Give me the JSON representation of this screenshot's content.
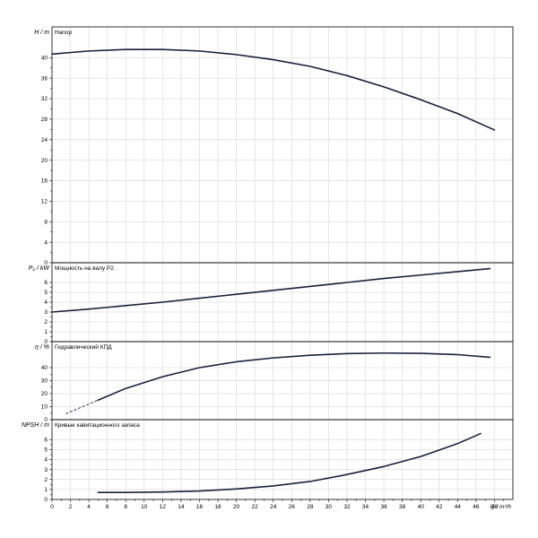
{
  "chart_data": {
    "type": "line",
    "x_axis": {
      "label": "Q / m³/h",
      "range": [
        0,
        50
      ],
      "ticks": [
        0,
        2,
        4,
        6,
        8,
        10,
        12,
        14,
        16,
        18,
        20,
        22,
        24,
        26,
        28,
        30,
        32,
        34,
        36,
        38,
        40,
        42,
        44,
        46,
        48
      ]
    },
    "panels": [
      {
        "id": "head",
        "title": "Напор",
        "ylabel": "H / m",
        "ylim": [
          0,
          46
        ],
        "yticks": [
          0,
          4,
          8,
          12,
          16,
          20,
          24,
          28,
          32,
          36,
          40
        ],
        "series": [
          {
            "x": [
              0,
              4,
              8,
              12,
              16,
              20,
              24,
              28,
              32,
              36,
              40,
              44,
              48
            ],
            "y": [
              40.7,
              41.3,
              41.6,
              41.6,
              41.3,
              40.6,
              39.6,
              38.3,
              36.5,
              34.3,
              31.8,
              29.1,
              25.9
            ]
          }
        ]
      },
      {
        "id": "power",
        "title": "Мощность на валу P2",
        "ylabel": "P₂ / kW",
        "ylim": [
          0,
          8
        ],
        "yticks": [
          0,
          1,
          2,
          3,
          4,
          5,
          6
        ],
        "series": [
          {
            "x": [
              0,
              4,
              8,
              12,
              16,
              20,
              24,
              28,
              32,
              36,
              40,
              44,
              47.5
            ],
            "y": [
              3.0,
              3.3,
              3.65,
              4.0,
              4.4,
              4.8,
              5.2,
              5.6,
              6.0,
              6.4,
              6.75,
              7.1,
              7.4
            ]
          }
        ]
      },
      {
        "id": "efficiency",
        "title": "Гидравлический КПД",
        "ylabel": "η / %",
        "ylim": [
          0,
          60
        ],
        "yticks": [
          0,
          10,
          20,
          30,
          40
        ],
        "series": [
          {
            "x": [
              5,
              8,
              12,
              16,
              20,
              24,
              28,
              32,
              36,
              40,
              44,
              47.5
            ],
            "y": [
              15,
              24,
              33,
              40,
              44.5,
              47.5,
              49.5,
              50.8,
              51.2,
              51.0,
              50.0,
              48.0
            ]
          },
          {
            "x": [
              1.5,
              5
            ],
            "y": [
              4.5,
              15
            ],
            "style": "dashed"
          }
        ]
      },
      {
        "id": "npsh",
        "title": "Кривые кавитационного запаса",
        "ylabel": "NPSH / m",
        "ylim": [
          0,
          8
        ],
        "yticks": [
          0,
          1,
          2,
          3,
          4,
          5,
          6
        ],
        "series": [
          {
            "x": [
              5,
              8,
              12,
              16,
              20,
              24,
              28,
              32,
              36,
              40,
              44,
              46.5
            ],
            "y": [
              0.7,
              0.7,
              0.75,
              0.85,
              1.05,
              1.35,
              1.8,
              2.5,
              3.3,
              4.3,
              5.6,
              6.6
            ]
          }
        ]
      }
    ],
    "grid": true
  }
}
